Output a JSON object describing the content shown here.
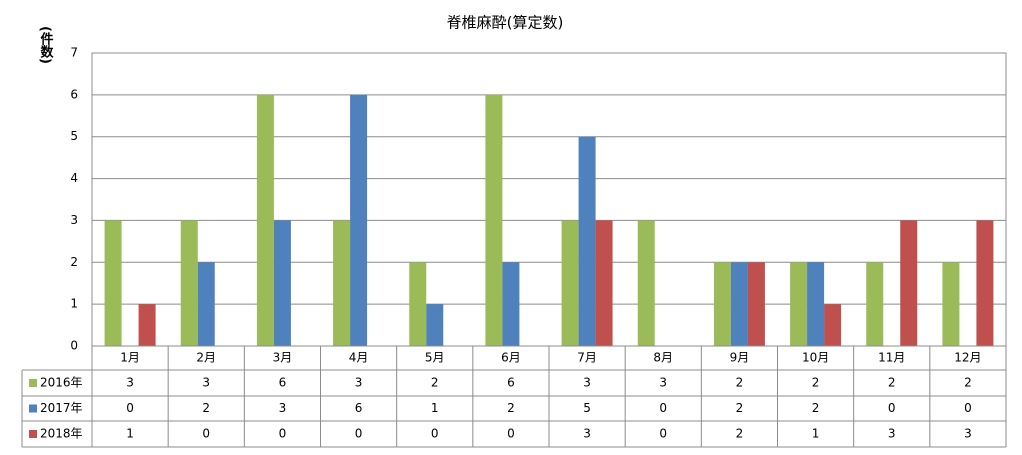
{
  "chart_data": {
    "type": "bar",
    "title": "脊椎麻酔(算定数)",
    "y_label": "(件数)",
    "categories": [
      "1月",
      "2月",
      "3月",
      "4月",
      "5月",
      "6月",
      "7月",
      "8月",
      "9月",
      "10月",
      "11月",
      "12月"
    ],
    "series": [
      {
        "name": "2016年",
        "color": "#9bbb59",
        "values": [
          3,
          3,
          6,
          3,
          2,
          6,
          3,
          3,
          2,
          2,
          2,
          2
        ]
      },
      {
        "name": "2017年",
        "color": "#4f81bd",
        "values": [
          0,
          2,
          3,
          6,
          1,
          2,
          5,
          0,
          2,
          2,
          0,
          0
        ]
      },
      {
        "name": "2018年",
        "color": "#c0504d",
        "values": [
          1,
          0,
          0,
          0,
          0,
          0,
          3,
          0,
          2,
          1,
          3,
          3
        ]
      }
    ],
    "ylim": [
      0,
      7
    ],
    "yticks": [
      0,
      1,
      2,
      3,
      4,
      5,
      6,
      7
    ],
    "grid": true,
    "data_table": true
  }
}
